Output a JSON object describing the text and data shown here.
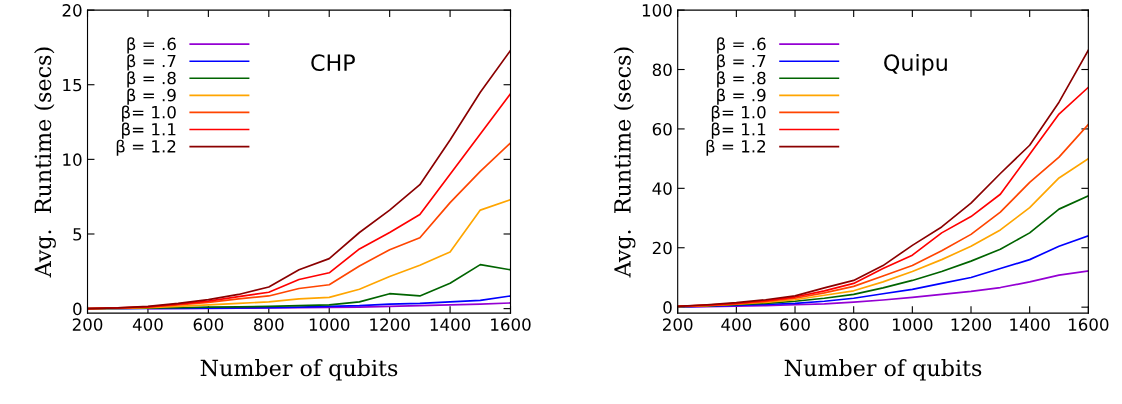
{
  "chart_data": [
    {
      "type": "line",
      "xlabel": "Number of qubits",
      "ylabel": "Avg.  Runtime (secs)",
      "annotations": [
        "CHP"
      ],
      "legend": "top left",
      "grid": false,
      "x": [
        200,
        300,
        400,
        500,
        600,
        700,
        800,
        900,
        1000,
        1100,
        1200,
        1300,
        1400,
        1500,
        1600
      ],
      "xlim": [
        200,
        1600
      ],
      "xticks": [
        200,
        400,
        600,
        800,
        1000,
        1200,
        1400,
        1600
      ],
      "ylim": [
        -0.3,
        20
      ],
      "yticks": [
        0,
        5,
        10,
        15,
        20
      ],
      "series": [
        {
          "name": "β = .6",
          "color": "#9400d3",
          "values": [
            null,
            null,
            0,
            0.01,
            0.02,
            0.03,
            0.04,
            0.06,
            0.08,
            0.1,
            0.15,
            0.2,
            0.25,
            0.3,
            0.38
          ]
        },
        {
          "name": "β = .7",
          "color": "#0000ff",
          "values": [
            0,
            0,
            0.01,
            0.02,
            0.03,
            0.05,
            0.07,
            0.1,
            0.15,
            0.2,
            0.3,
            0.35,
            0.45,
            0.55,
            0.85
          ]
        },
        {
          "name": "β = .8",
          "color": "#006400",
          "values": [
            0,
            0.01,
            0.03,
            0.06,
            0.1,
            0.12,
            0.15,
            0.2,
            0.25,
            0.45,
            1.0,
            0.85,
            1.7,
            2.95,
            2.6
          ]
        },
        {
          "name": "β = .9",
          "color": "#ffa500",
          "values": [
            0,
            0.02,
            0.06,
            0.15,
            0.25,
            0.35,
            0.45,
            0.65,
            0.75,
            1.3,
            2.15,
            2.9,
            3.8,
            6.6,
            7.3
          ]
        },
        {
          "name": "β= 1.0",
          "color": "#ff4500",
          "values": [
            0,
            0.04,
            0.1,
            0.25,
            0.42,
            0.65,
            0.85,
            1.35,
            1.6,
            2.85,
            3.95,
            4.75,
            7.1,
            9.2,
            11.1
          ]
        },
        {
          "name": "β= 1.1",
          "color": "#ff0000",
          "values": [
            0,
            0.05,
            0.12,
            0.3,
            0.5,
            0.8,
            1.1,
            1.95,
            2.4,
            4.0,
            5.1,
            6.3,
            9.0,
            11.7,
            14.4
          ]
        },
        {
          "name": "β = 1.2",
          "color": "#8b0000",
          "values": [
            0,
            0.05,
            0.15,
            0.35,
            0.6,
            0.95,
            1.45,
            2.6,
            3.35,
            5.1,
            6.6,
            8.3,
            11.3,
            14.5,
            17.3
          ]
        }
      ]
    },
    {
      "type": "line",
      "xlabel": "Number of qubits",
      "ylabel": "Avg.  Runtime (secs)",
      "annotations": [
        "Quipu"
      ],
      "legend": "top left",
      "grid": false,
      "x": [
        200,
        300,
        400,
        500,
        600,
        700,
        800,
        900,
        1000,
        1100,
        1200,
        1300,
        1400,
        1500,
        1600
      ],
      "xlim": [
        200,
        1600
      ],
      "xticks": [
        200,
        400,
        600,
        800,
        1000,
        1200,
        1400,
        1600
      ],
      "ylim": [
        -2,
        100
      ],
      "yticks": [
        0,
        20,
        40,
        60,
        80,
        100
      ],
      "series": [
        {
          "name": "β = .6",
          "color": "#9400d3",
          "values": [
            0.1,
            0.2,
            0.3,
            0.5,
            0.8,
            1.1,
            1.7,
            2.4,
            3.3,
            4.3,
            5.3,
            6.6,
            8.5,
            10.8,
            12.2
          ]
        },
        {
          "name": "β = .7",
          "color": "#0000ff",
          "values": [
            0.1,
            0.3,
            0.6,
            0.9,
            1.3,
            2,
            3,
            4.5,
            6,
            8,
            10,
            13,
            16,
            20.5,
            24
          ]
        },
        {
          "name": "β = .8",
          "color": "#006400",
          "values": [
            0.2,
            0.4,
            0.8,
            1.3,
            2,
            3,
            4.3,
            6.5,
            9,
            12,
            15.5,
            19.5,
            25,
            33,
            37.5
          ]
        },
        {
          "name": "β = .9",
          "color": "#ffa500",
          "values": [
            0.2,
            0.5,
            1,
            1.6,
            2.5,
            4,
            5.5,
            8.5,
            12,
            16,
            20.5,
            26,
            33.5,
            43.5,
            50
          ]
        },
        {
          "name": "β= 1.0",
          "color": "#ff4500",
          "values": [
            0.3,
            0.6,
            1.1,
            1.9,
            3,
            4.8,
            7,
            10.5,
            14,
            19,
            24.5,
            32,
            42,
            50.5,
            61.5
          ]
        },
        {
          "name": "β= 1.1",
          "color": "#ff0000",
          "values": [
            0.3,
            0.7,
            1.3,
            2.2,
            3.4,
            5.5,
            8,
            13,
            17.5,
            25,
            30.5,
            38,
            51.5,
            65,
            74
          ]
        },
        {
          "name": "β = 1.2",
          "color": "#8b0000",
          "values": [
            0.3,
            0.8,
            1.5,
            2.5,
            3.8,
            6.5,
            9,
            14,
            20.8,
            27,
            35,
            45,
            54.5,
            69,
            86.5
          ]
        }
      ]
    }
  ]
}
